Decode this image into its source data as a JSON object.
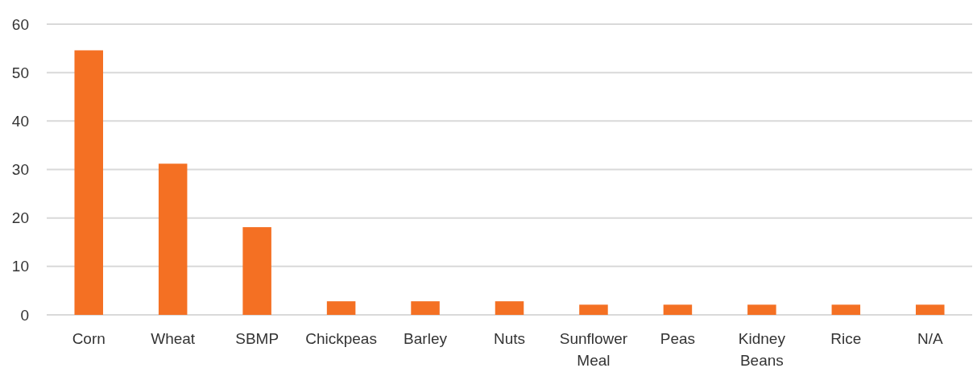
{
  "chart_data": {
    "type": "bar",
    "categories": [
      "Corn",
      "Wheat",
      "SBMP",
      "Chickpeas",
      "Barley",
      "Nuts",
      "Sunflower Meal",
      "Peas",
      "Kidney Beans",
      "Rice",
      "N/A"
    ],
    "values": [
      54.6,
      31.2,
      18.1,
      2.8,
      2.8,
      2.8,
      2.1,
      2.1,
      2.1,
      2.1,
      2.1
    ],
    "color": "#f47023",
    "ylim": [
      0,
      60
    ],
    "yticks": [
      0,
      10,
      20,
      30,
      40,
      50,
      60
    ],
    "grid": "y"
  }
}
